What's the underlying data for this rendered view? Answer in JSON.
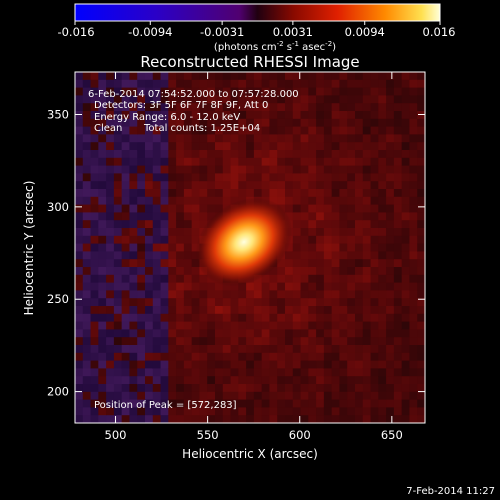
{
  "colorbar": {
    "ticks": [
      "-0.016",
      "-0.0094",
      "-0.0031",
      "0.0031",
      "0.0094",
      "0.016"
    ],
    "units_prefix": "(photons cm",
    "units_exp1": "-2",
    "units_mid": " s",
    "units_exp2": "-1",
    "units_mid2": " asec",
    "units_exp3": "-2",
    "units_suffix": ")"
  },
  "plot_title": "Reconstructed RHESSI Image",
  "info": {
    "time_range": "6-Feb-2014 07:54:52.000 to 07:57:28.000",
    "detectors": "Detectors: 3F 5F 6F 7F 8F 9F, Att 0",
    "energy": "Energy Range: 6.0 - 12.0 keV",
    "method": "Clean",
    "counts": "Total counts: 1.25E+04",
    "peak": "Position of Peak = [572,283]"
  },
  "footer_date": "7-Feb-2014 11:27",
  "chart_data": {
    "type": "heatmap",
    "title": "Reconstructed RHESSI Image",
    "xlabel": "Heliocentric X (arcsec)",
    "ylabel": "Heliocentric Y (arcsec)",
    "xlim": [
      478,
      668
    ],
    "ylim": [
      183,
      373
    ],
    "x_ticks": [
      500,
      550,
      600,
      650
    ],
    "y_ticks": [
      200,
      250,
      300,
      350
    ],
    "colorbar_range": [
      -0.016,
      0.016
    ],
    "peak": {
      "x": 572,
      "y": 283
    },
    "colors": {
      "background": "#000000",
      "text": "#ffffff",
      "bright": "#fff4b0",
      "mid": "#e03010",
      "low": "#3a0a06",
      "negative": "#2a1850"
    }
  }
}
